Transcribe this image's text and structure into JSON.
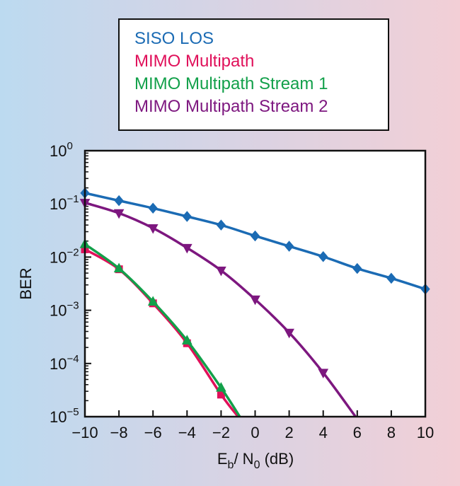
{
  "chart_data": {
    "type": "line",
    "xlabel": "Eb/N0 (dB)",
    "xlabel_main": "E",
    "xlabel_sub1": "b",
    "xlabel_mid": "/ N",
    "xlabel_sub2": "0",
    "xlabel_tail": " (dB)",
    "ylabel": "BER",
    "xlim": [
      -10,
      10
    ],
    "ylim": [
      1e-05,
      1
    ],
    "y_scale": "log",
    "grid": false,
    "legend_position": "top-center",
    "x_ticks": [
      -10,
      -8,
      -6,
      -4,
      -2,
      0,
      2,
      4,
      6,
      8,
      10
    ],
    "x_tick_labels": [
      "−10",
      "−8",
      "−6",
      "−4",
      "−2",
      "0",
      "2",
      "4",
      "6",
      "8",
      "10"
    ],
    "y_ticks": [
      {
        "value": 1,
        "base": "10",
        "exp": "0"
      },
      {
        "value": 0.1,
        "base": "10",
        "exp": "−1"
      },
      {
        "value": 0.01,
        "base": "10",
        "exp": "−2"
      },
      {
        "value": 0.001,
        "base": "10",
        "exp": "−3"
      },
      {
        "value": 0.0001,
        "base": "10",
        "exp": "−4"
      },
      {
        "value": 1e-05,
        "base": "10",
        "exp": "−5"
      }
    ],
    "series": [
      {
        "name": "SISO LOS",
        "color": "#1b6bb4",
        "marker": "diamond",
        "x": [
          -10,
          -8,
          -6,
          -4,
          -2,
          0,
          2,
          4,
          6,
          8,
          10
        ],
        "y": [
          0.16,
          0.115,
          0.083,
          0.058,
          0.04,
          0.025,
          0.016,
          0.0102,
          0.0061,
          0.004,
          0.0025
        ]
      },
      {
        "name": "MIMO Multipath",
        "color": "#e0105a",
        "marker": "square",
        "x": [
          -10,
          -8,
          -6,
          -4,
          -2,
          -1
        ],
        "y": [
          0.014,
          0.0059,
          0.00135,
          0.00024,
          2.6e-05,
          1e-05
        ],
        "marker_count": 5
      },
      {
        "name": "MIMO Multipath Stream 1",
        "color": "#12a04a",
        "marker": "triangle-up",
        "x": [
          -10,
          -8,
          -6,
          -4,
          -2,
          -0.9
        ],
        "y": [
          0.0175,
          0.0061,
          0.00145,
          0.00027,
          3.5e-05,
          1e-05
        ],
        "marker_count": 5
      },
      {
        "name": "MIMO Multipath Stream 2",
        "color": "#7d177f",
        "marker": "triangle-down",
        "x": [
          -10,
          -8,
          -6,
          -4,
          -2,
          0,
          2,
          4,
          5.9
        ],
        "y": [
          0.105,
          0.067,
          0.035,
          0.0149,
          0.0056,
          0.0016,
          0.00038,
          6.7e-05,
          1e-05
        ],
        "marker_count": 8
      }
    ]
  }
}
